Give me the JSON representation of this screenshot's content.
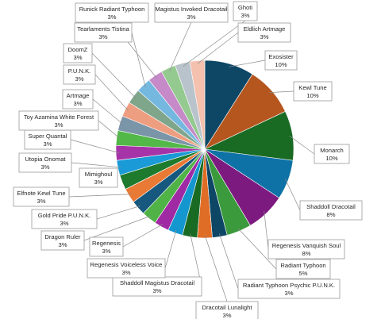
{
  "chart_data": {
    "type": "pie",
    "title": "",
    "start_angle_deg": 0,
    "direction": "clockwise",
    "slices": [
      {
        "label": "Exosister",
        "value": 10,
        "pct_label": "10%",
        "color": "#0e4766"
      },
      {
        "label": "Kewl Tune",
        "value": 10,
        "pct_label": "10%",
        "color": "#b5561f"
      },
      {
        "label": "Monarch",
        "value": 10,
        "pct_label": "10%",
        "color": "#196b24"
      },
      {
        "label": "Shaddoll Dracotail",
        "value": 8,
        "pct_label": "8%",
        "color": "#0f72a6"
      },
      {
        "label": "Regenesis Vanquish Soul",
        "value": 8,
        "pct_label": "8%",
        "color": "#7d1a80"
      },
      {
        "label": "Radiant Typhoon",
        "value": 5,
        "pct_label": "5%",
        "color": "#3a9a3c"
      },
      {
        "label": "Radiant Typhoon Psychic P.U.N.K.",
        "value": 3,
        "pct_label": "3%",
        "color": "#0e4766"
      },
      {
        "label": "Dracotail Lunalight",
        "value": 3,
        "pct_label": "3%",
        "color": "#e06d26"
      },
      {
        "label": "Shaddoll Magistus Dracotail",
        "value": 3,
        "pct_label": "3%",
        "color": "#196b24"
      },
      {
        "label": "Regenesis Voiceless Voice",
        "value": 3,
        "pct_label": "3%",
        "color": "#1496cf"
      },
      {
        "label": "Regenesis",
        "value": 3,
        "pct_label": "3%",
        "color": "#a02aa3"
      },
      {
        "label": "Dragon Ruler",
        "value": 3,
        "pct_label": "3%",
        "color": "#4fb346"
      },
      {
        "label": "Gold Pride P.U.N.K.",
        "value": 3,
        "pct_label": "3%",
        "color": "#16587e"
      },
      {
        "label": "Elfnote Kewl Tune",
        "value": 3,
        "pct_label": "3%",
        "color": "#e97a35"
      },
      {
        "label": "Mimighoul",
        "value": 3,
        "pct_label": "3%",
        "color": "#1e7a2d"
      },
      {
        "label": "Utopia Onomat",
        "value": 3,
        "pct_label": "3%",
        "color": "#1a9ad6"
      },
      {
        "label": "Super Quantal",
        "value": 3,
        "pct_label": "3%",
        "color": "#a634a8"
      },
      {
        "label": "Toy Azamina White Forest",
        "value": 3,
        "pct_label": "3%",
        "color": "#52b848"
      },
      {
        "label": "Artmage",
        "value": 3,
        "pct_label": "3%",
        "color": "#7b95a8"
      },
      {
        "label": "P.U.N.K.",
        "value": 3,
        "pct_label": "3%",
        "color": "#ee9e80"
      },
      {
        "label": "DoomZ",
        "value": 3,
        "pct_label": "3%",
        "color": "#7fa58b"
      },
      {
        "label": "Tearlaments Tistina",
        "value": 3,
        "pct_label": "3%",
        "color": "#74b8e0"
      },
      {
        "label": "Runick Radiant Typhoon",
        "value": 3,
        "pct_label": "3%",
        "color": "#c58ac7"
      },
      {
        "label": "Magistus Invoked Dracotail",
        "value": 3,
        "pct_label": "3%",
        "color": "#94c98f"
      },
      {
        "label": "Ghoti",
        "value": 3,
        "pct_label": "3%",
        "color": "#b8c3cc"
      },
      {
        "label": "Eldlich Artmage",
        "value": 3,
        "pct_label": "3%",
        "color": "#f3c1ae"
      }
    ]
  }
}
